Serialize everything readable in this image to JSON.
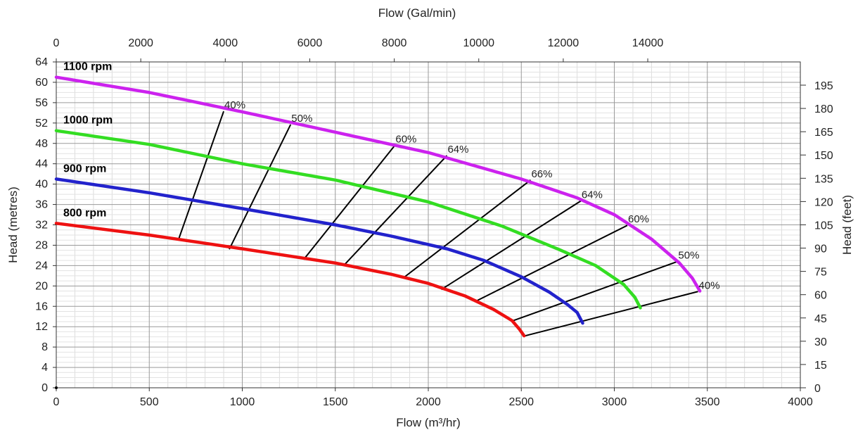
{
  "chart_data": {
    "type": "line",
    "title": "",
    "xlabel": "Flow (m³/hr)",
    "ylabel": "Head (metres)",
    "x2label": "Flow (Gal/min)",
    "y2label": "Head (feet)",
    "xlim": [
      0,
      4000
    ],
    "ylim": [
      0,
      64
    ],
    "x2lim": [
      0,
      17611.3
    ],
    "y2lim": [
      0,
      209.97
    ],
    "grid": true,
    "x_ticks": [
      "0",
      "500",
      "1000",
      "1500",
      "2000",
      "2500",
      "3000",
      "3500",
      "4000"
    ],
    "y_ticks": [
      "0",
      "4",
      "8",
      "12",
      "16",
      "20",
      "24",
      "28",
      "32",
      "36",
      "40",
      "44",
      "48",
      "52",
      "56",
      "60",
      "64"
    ],
    "x2_ticks": [
      "0",
      "2000",
      "4000",
      "6000",
      "8000",
      "10000",
      "12000",
      "14000"
    ],
    "y2_ticks": [
      "0",
      "15",
      "30",
      "45",
      "60",
      "75",
      "90",
      "105",
      "120",
      "135",
      "150",
      "165",
      "180",
      "195"
    ],
    "colors": {
      "1100 rpm": "#cc22ee",
      "1000 rpm": "#33dd22",
      "900 rpm": "#2222cc",
      "800 rpm": "#ee1111",
      "efficiency": "#000000"
    },
    "series": [
      {
        "name": "1100 rpm",
        "x": [
          0,
          500,
          1000,
          1500,
          2000,
          2500,
          2800,
          3000,
          3200,
          3350,
          3420,
          3460
        ],
        "y": [
          61,
          58,
          54.2,
          50.2,
          46.2,
          41,
          37.3,
          34,
          29.2,
          24.5,
          21.5,
          19
        ]
      },
      {
        "name": "1000 rpm",
        "x": [
          0,
          500,
          1000,
          1500,
          2000,
          2400,
          2700,
          2900,
          3050,
          3110,
          3140
        ],
        "y": [
          50.5,
          47.8,
          44,
          40.8,
          36.5,
          31.7,
          27.2,
          24,
          20.3,
          17.8,
          15.7
        ]
      },
      {
        "name": "900 rpm",
        "x": [
          0,
          500,
          1000,
          1500,
          1800,
          2100,
          2300,
          2500,
          2650,
          2750,
          2800,
          2830
        ],
        "y": [
          41,
          38.3,
          35.2,
          32,
          29.8,
          27.3,
          25,
          21.8,
          18.8,
          16.3,
          14.8,
          12.7
        ]
      },
      {
        "name": "800 rpm",
        "x": [
          0,
          500,
          1000,
          1500,
          1800,
          2000,
          2200,
          2350,
          2450,
          2490,
          2515
        ],
        "y": [
          32.3,
          30,
          27.3,
          24.5,
          22.3,
          20.5,
          18,
          15.4,
          13.2,
          11.5,
          10.2
        ]
      }
    ],
    "efficiency_lines": [
      {
        "label": "40%",
        "x1": 660,
        "y1": 29.4,
        "x2": 900,
        "y2": 54.3
      },
      {
        "label": "50%",
        "x1": 930,
        "y1": 27.2,
        "x2": 1260,
        "y2": 51.7
      },
      {
        "label": "60%",
        "x1": 1330,
        "y1": 25.2,
        "x2": 1820,
        "y2": 47.6
      },
      {
        "label": "64%",
        "x1": 1550,
        "y1": 24.2,
        "x2": 2100,
        "y2": 45.6
      },
      {
        "label": "66%",
        "x1": 1870,
        "y1": 21.7,
        "x2": 2550,
        "y2": 40.8
      },
      {
        "label": "64%",
        "x1": 2070,
        "y1": 19.3,
        "x2": 2820,
        "y2": 36.7
      },
      {
        "label": "60%",
        "x1": 2250,
        "y1": 16.9,
        "x2": 3070,
        "y2": 31.9
      },
      {
        "label": "50%",
        "x1": 2450,
        "y1": 13.1,
        "x2": 3340,
        "y2": 24.8
      },
      {
        "label": "40%",
        "x1": 2520,
        "y1": 10.2,
        "x2": 3450,
        "y2": 18.9
      }
    ]
  }
}
